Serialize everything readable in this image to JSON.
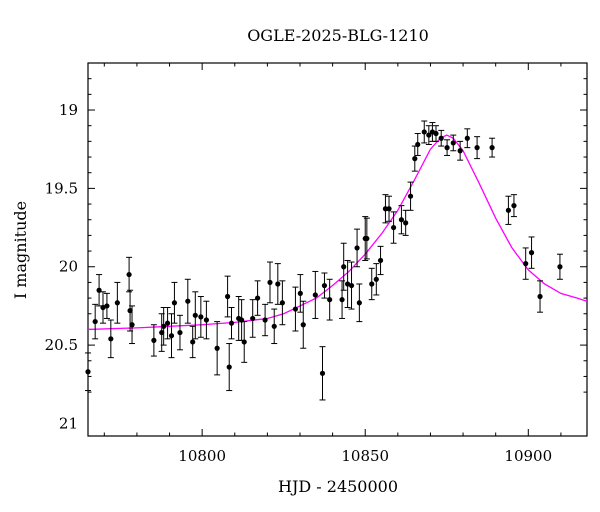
{
  "chart_data": {
    "type": "scatter",
    "title": "OGLE-2025-BLG-1210",
    "xlabel": "HJD - 2450000",
    "ylabel": "I magnitude",
    "xlim": [
      10765,
      10918
    ],
    "ylim": [
      21.08,
      18.7
    ],
    "y_inverted": true,
    "xticks": [
      10800,
      10850,
      10900
    ],
    "yticks": [
      19,
      19.5,
      20,
      20.5,
      21
    ],
    "xtick_labels": [
      "10800",
      "10850",
      "10900"
    ],
    "ytick_labels": [
      "19",
      "19.5",
      "20",
      "20.5",
      "21"
    ],
    "grid": false,
    "marker_color": "#000000",
    "errorbar_color": "#000000",
    "series": [
      {
        "kind": "points_with_errors",
        "x": [
          10765.0,
          10767.2,
          10768.4,
          10769.6,
          10770.8,
          10772.0,
          10774.0,
          10777.6,
          10777.9,
          10778.5,
          10785.2,
          10787.6,
          10788.2,
          10789.4,
          10790.6,
          10791.5,
          10793.2,
          10795.6,
          10797.1,
          10797.9,
          10799.6,
          10801.3,
          10804.6,
          10807.8,
          10808.3,
          10809.0,
          10811.2,
          10812.1,
          10812.9,
          10815.5,
          10817.0,
          10819.3,
          10820.8,
          10822.1,
          10823.2,
          10824.6,
          10828.6,
          10830.1,
          10831.0,
          10834.7,
          10836.9,
          10837.5,
          10839.1,
          10842.9,
          10843.4,
          10844.6,
          10845.8,
          10847.5,
          10848.2,
          10850.0,
          10850.5,
          10852.0,
          10853.4,
          10854.7,
          10856.2,
          10857.3,
          10858.7,
          10861.1,
          10862.4,
          10863.9,
          10865.2,
          10866.1,
          10868.1,
          10869.5,
          10870.6,
          10871.7,
          10873.3,
          10875.1,
          10877.0,
          10879.1,
          10881.3,
          10884.3,
          10888.9,
          10893.9,
          10895.6,
          10899.2,
          10901.0,
          10903.6,
          10909.7
        ],
        "y": [
          20.67,
          20.35,
          20.15,
          20.26,
          20.25,
          20.46,
          20.23,
          20.05,
          20.28,
          20.37,
          20.47,
          20.42,
          20.38,
          20.36,
          20.44,
          20.23,
          20.42,
          20.22,
          20.48,
          20.31,
          20.32,
          20.34,
          20.52,
          20.19,
          20.64,
          20.36,
          20.33,
          20.34,
          20.48,
          20.33,
          20.2,
          20.34,
          20.1,
          20.38,
          20.11,
          20.23,
          20.27,
          20.17,
          20.37,
          20.18,
          20.68,
          20.12,
          20.21,
          20.21,
          20.0,
          20.11,
          20.12,
          19.88,
          20.23,
          19.82,
          19.82,
          20.11,
          20.08,
          19.96,
          19.63,
          19.63,
          19.75,
          19.7,
          19.72,
          19.55,
          19.31,
          19.22,
          19.14,
          19.16,
          19.14,
          19.15,
          19.18,
          19.24,
          19.21,
          19.26,
          19.18,
          19.24,
          19.24,
          19.64,
          19.61,
          19.98,
          19.91,
          20.19,
          20.0
        ],
        "yerr": [
          0.12,
          0.11,
          0.1,
          0.1,
          0.08,
          0.12,
          0.13,
          0.11,
          0.13,
          0.12,
          0.1,
          0.12,
          0.12,
          0.1,
          0.14,
          0.13,
          0.11,
          0.14,
          0.1,
          0.15,
          0.13,
          0.12,
          0.17,
          0.13,
          0.15,
          0.1,
          0.14,
          0.13,
          0.13,
          0.12,
          0.11,
          0.1,
          0.13,
          0.11,
          0.13,
          0.14,
          0.14,
          0.12,
          0.15,
          0.15,
          0.17,
          0.08,
          0.13,
          0.12,
          0.15,
          0.15,
          0.15,
          0.12,
          0.12,
          0.14,
          0.13,
          0.1,
          0.1,
          0.09,
          0.09,
          0.08,
          0.1,
          0.09,
          0.08,
          0.09,
          0.08,
          0.07,
          0.07,
          0.06,
          0.06,
          0.05,
          0.05,
          0.05,
          0.05,
          0.06,
          0.06,
          0.07,
          0.06,
          0.09,
          0.07,
          0.1,
          0.1,
          0.1,
          0.08
        ]
      },
      {
        "kind": "model_curve",
        "color": "#ff00ff",
        "x": [
          10765,
          10780,
          10790,
          10800,
          10810,
          10820,
          10825,
          10830,
          10835,
          10840,
          10845,
          10850,
          10855,
          10860,
          10865,
          10870,
          10873,
          10875,
          10877,
          10880,
          10885,
          10890,
          10895,
          10900,
          10905,
          10910,
          10915,
          10918
        ],
        "y": [
          20.4,
          20.39,
          20.38,
          20.37,
          20.355,
          20.33,
          20.3,
          20.25,
          20.2,
          20.12,
          20.03,
          19.92,
          19.79,
          19.64,
          19.45,
          19.25,
          19.18,
          19.16,
          19.18,
          19.26,
          19.47,
          19.69,
          19.88,
          20.02,
          20.11,
          20.17,
          20.2,
          20.22
        ]
      }
    ]
  }
}
